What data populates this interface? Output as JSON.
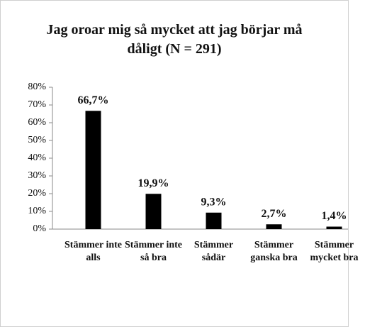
{
  "chart_data": {
    "type": "bar",
    "title": "Jag oroar mig så mycket att jag börjar må dåligt (N = 291)",
    "categories": [
      "Stämmer inte alls",
      "Stämmer inte så bra",
      "Stämmer sådär",
      "Stämmer ganska bra",
      "Stämmer mycket bra"
    ],
    "values": [
      66.7,
      19.9,
      9.3,
      2.7,
      1.4
    ],
    "value_labels": [
      "66,7%",
      "19,9%",
      "9,3%",
      "2,7%",
      "1,4%"
    ],
    "color": "#000000",
    "ylim": [
      0,
      80
    ],
    "yticks": [
      {
        "value": 0,
        "label": "0%"
      },
      {
        "value": 10,
        "label": "10%"
      },
      {
        "value": 20,
        "label": "20%"
      },
      {
        "value": 30,
        "label": "30%"
      },
      {
        "value": 40,
        "label": "40%"
      },
      {
        "value": 50,
        "label": "50%"
      },
      {
        "value": 60,
        "label": "60%"
      },
      {
        "value": 70,
        "label": "70%"
      },
      {
        "value": 80,
        "label": "80%"
      }
    ],
    "grid": false
  }
}
